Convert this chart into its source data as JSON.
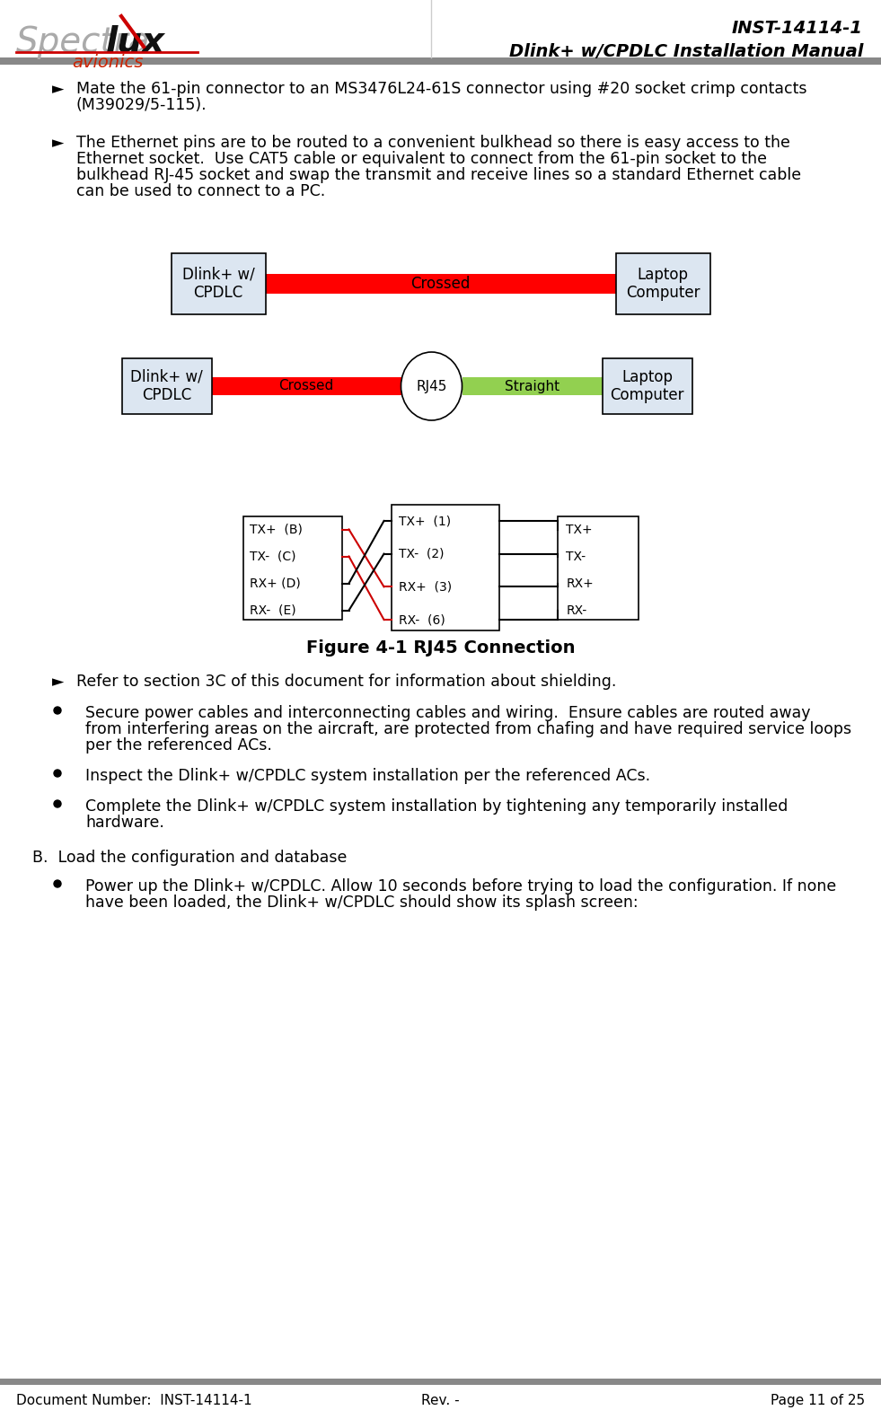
{
  "page_width": 9.81,
  "page_height": 15.8,
  "bg_color": "#ffffff",
  "header": {
    "title_line1": "INST-14114-1",
    "title_line2": "Dlink+ w/CPDLC Installation Manual",
    "bar_color": "#808080"
  },
  "footer": {
    "left": "Document Number:  INST-14114-1",
    "center": "Rev. -",
    "right": "Page 11 of 25",
    "bar_color": "#808080"
  },
  "box_fill": "#dce6f1",
  "box_edge": "#000000",
  "red_fill": "#ff0000",
  "green_fill": "#92d050",
  "diagram3": {
    "left_labels": [
      "TX+  (B)",
      "TX-  (C)",
      "RX+ (D)",
      "RX-  (E)"
    ],
    "mid_labels": [
      "TX+  (1)",
      "TX-  (2)",
      "RX+  (3)",
      "RX-  (6)"
    ],
    "right_labels": [
      "TX+",
      "TX-",
      "RX+",
      "RX-"
    ]
  },
  "figure_caption": "Figure 4-1 RJ45 Connection",
  "section_b_title": "B.  Load the configuration and database"
}
